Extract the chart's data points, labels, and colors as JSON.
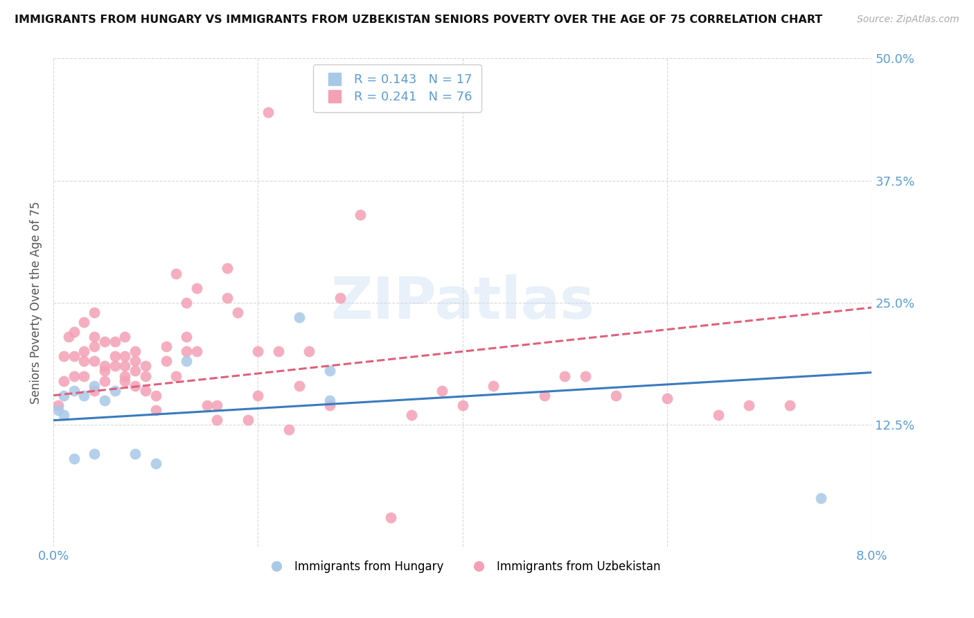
{
  "title": "IMMIGRANTS FROM HUNGARY VS IMMIGRANTS FROM UZBEKISTAN SENIORS POVERTY OVER THE AGE OF 75 CORRELATION CHART",
  "source": "Source: ZipAtlas.com",
  "ylabel": "Seniors Poverty Over the Age of 75",
  "xlabel_hungary": "Immigrants from Hungary",
  "xlabel_uzbekistan": "Immigrants from Uzbekistan",
  "hungary_R": "0.143",
  "hungary_N": "17",
  "uzbekistan_R": "0.241",
  "uzbekistan_N": "76",
  "xlim": [
    0.0,
    0.08
  ],
  "ylim": [
    0.0,
    0.5
  ],
  "yticks": [
    0.0,
    0.125,
    0.25,
    0.375,
    0.5
  ],
  "ytick_labels": [
    "",
    "12.5%",
    "25.0%",
    "37.5%",
    "50.0%"
  ],
  "xticks": [
    0.0,
    0.02,
    0.04,
    0.06,
    0.08
  ],
  "xtick_labels": [
    "0.0%",
    "",
    "",
    "",
    "8.0%"
  ],
  "hungary_color": "#a8c8e8",
  "uzbekistan_color": "#f4a0b5",
  "hungary_line_color": "#3a7abf",
  "uzbekistan_line_color": "#e0607a",
  "tick_color": "#5b9bd5",
  "grid_color": "#d8d8d8",
  "background_color": "#ffffff",
  "watermark": "ZIPatlas",
  "hungary_x": [
    0.0005,
    0.001,
    0.001,
    0.002,
    0.002,
    0.003,
    0.004,
    0.004,
    0.005,
    0.006,
    0.008,
    0.01,
    0.013,
    0.024,
    0.027,
    0.027,
    0.075
  ],
  "hungary_y": [
    0.14,
    0.155,
    0.135,
    0.16,
    0.09,
    0.155,
    0.095,
    0.165,
    0.15,
    0.16,
    0.095,
    0.085,
    0.19,
    0.235,
    0.18,
    0.15,
    0.05
  ],
  "uzbekistan_x": [
    0.0005,
    0.001,
    0.001,
    0.0015,
    0.002,
    0.002,
    0.002,
    0.003,
    0.003,
    0.003,
    0.003,
    0.004,
    0.004,
    0.004,
    0.004,
    0.004,
    0.005,
    0.005,
    0.005,
    0.005,
    0.006,
    0.006,
    0.006,
    0.007,
    0.007,
    0.007,
    0.007,
    0.007,
    0.008,
    0.008,
    0.008,
    0.008,
    0.009,
    0.009,
    0.009,
    0.01,
    0.01,
    0.011,
    0.011,
    0.012,
    0.012,
    0.013,
    0.013,
    0.013,
    0.014,
    0.014,
    0.015,
    0.016,
    0.016,
    0.017,
    0.017,
    0.018,
    0.019,
    0.02,
    0.02,
    0.021,
    0.022,
    0.023,
    0.024,
    0.025,
    0.027,
    0.028,
    0.03,
    0.033,
    0.035,
    0.038,
    0.04,
    0.043,
    0.048,
    0.05,
    0.052,
    0.055,
    0.06,
    0.065,
    0.068,
    0.072
  ],
  "uzbekistan_y": [
    0.145,
    0.17,
    0.195,
    0.215,
    0.175,
    0.195,
    0.22,
    0.175,
    0.19,
    0.2,
    0.23,
    0.16,
    0.19,
    0.205,
    0.215,
    0.24,
    0.17,
    0.18,
    0.185,
    0.21,
    0.185,
    0.195,
    0.21,
    0.17,
    0.175,
    0.185,
    0.195,
    0.215,
    0.165,
    0.18,
    0.19,
    0.2,
    0.16,
    0.175,
    0.185,
    0.14,
    0.155,
    0.19,
    0.205,
    0.175,
    0.28,
    0.2,
    0.215,
    0.25,
    0.2,
    0.265,
    0.145,
    0.13,
    0.145,
    0.255,
    0.285,
    0.24,
    0.13,
    0.155,
    0.2,
    0.445,
    0.2,
    0.12,
    0.165,
    0.2,
    0.145,
    0.255,
    0.34,
    0.03,
    0.135,
    0.16,
    0.145,
    0.165,
    0.155,
    0.175,
    0.175,
    0.155,
    0.152,
    0.135,
    0.145,
    0.145
  ],
  "hungary_trendline": [
    0.1295,
    0.1785
  ],
  "uzbekistan_trendline": [
    0.155,
    0.245
  ]
}
